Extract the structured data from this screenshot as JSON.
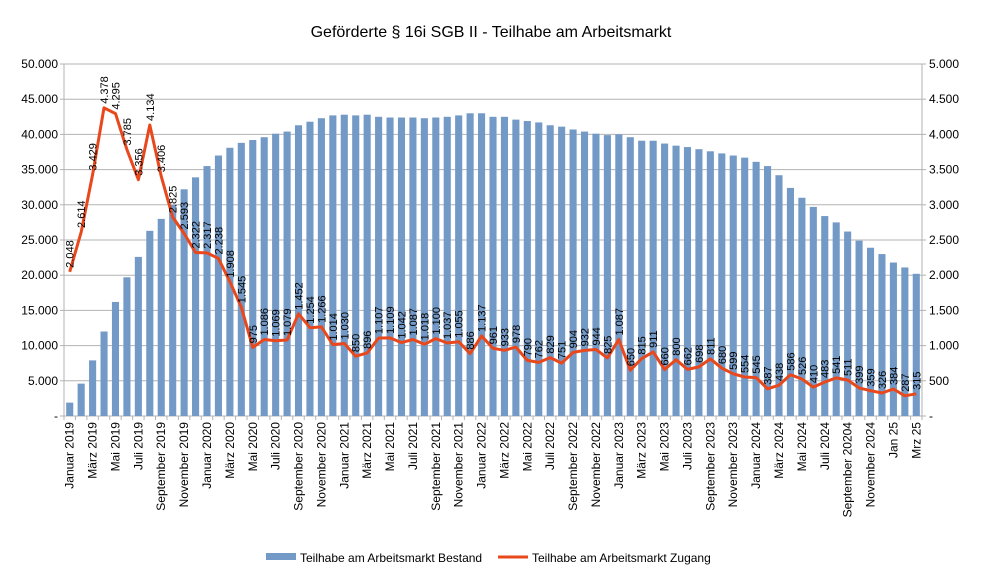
{
  "chart_data": {
    "type": "bar+line",
    "title": "Geförderte § 16i SGB II - Teilhabe am Arbeitsmarkt",
    "left_axis": {
      "ylim": [
        0,
        50000
      ],
      "ticks": [
        "-",
        "5.000",
        "10.000",
        "15.000",
        "20.000",
        "25.000",
        "30.000",
        "35.000",
        "40.000",
        "45.000",
        "50.000"
      ]
    },
    "right_axis": {
      "ylim": [
        0,
        5000
      ],
      "ticks": [
        "-",
        "500",
        "1.000",
        "1.500",
        "2.000",
        "2.500",
        "3.000",
        "3.500",
        "4.000",
        "4.500",
        "5.000"
      ]
    },
    "grid": true,
    "legend_position": "bottom",
    "x_tick_labels": [
      "Januar 2019",
      "März 2019",
      "Mai 2019",
      "Juli 2019",
      "September 2019",
      "November 2019",
      "Januar 2020",
      "März 2020",
      "Mai 2020",
      "Juli 2020",
      "September 2020",
      "November 2020",
      "Januar 2021",
      "März 2021",
      "Mai 2021",
      "Juli 2021",
      "September 2021",
      "November 2021",
      "Januar 2022",
      "März 2022",
      "Mai 2022",
      "Juli 2022",
      "September 2022",
      "November 2022",
      "Januar 2023",
      "März 2023",
      "Mai 2023",
      "Juli 2023",
      "September 2023",
      "November 2023",
      "Januar 2024",
      "März 2024",
      "Mai 2024",
      "Juli 2024",
      "September 20204",
      "November 2024",
      "Jan 25",
      "Mrz 25"
    ],
    "series": [
      {
        "name": "Teilhabe am Arbeitsmarkt Bestand",
        "type": "bar",
        "axis": "left",
        "color": "#7399c6",
        "values": [
          1900,
          4600,
          7900,
          12000,
          16200,
          19700,
          22600,
          26300,
          28000,
          30000,
          32200,
          33900,
          35500,
          37000,
          38100,
          38800,
          39200,
          39600,
          40100,
          40400,
          41300,
          41800,
          42300,
          42700,
          42800,
          42700,
          42800,
          42500,
          42400,
          42400,
          42400,
          42300,
          42400,
          42500,
          42700,
          43000,
          43000,
          42500,
          42500,
          42100,
          41900,
          41700,
          41300,
          41100,
          40700,
          40400,
          40100,
          39900,
          40000,
          39600,
          39100,
          39100,
          38700,
          38400,
          38200,
          37900,
          37600,
          37300,
          37000,
          36700,
          36100,
          35500,
          34200,
          32400,
          31000,
          29700,
          28400,
          27500,
          26200,
          24900,
          23900,
          23000,
          21800,
          21100,
          20200
        ]
      },
      {
        "name": "Teilhabe am Arbeitsmarkt Zugang",
        "type": "line",
        "axis": "right",
        "color": "#e8481c",
        "values": [
          2048,
          2614,
          3429,
          4378,
          4295,
          3785,
          3356,
          4134,
          3406,
          2825,
          2593,
          2322,
          2317,
          2238,
          1908,
          1545,
          975,
          1086,
          1069,
          1079,
          1452,
          1254,
          1266,
          1014,
          1030,
          850,
          896,
          1107,
          1109,
          1042,
          1087,
          1018,
          1100,
          1037,
          1055,
          886,
          1137,
          961,
          933,
          978,
          790,
          762,
          829,
          751,
          904,
          932,
          944,
          825,
          1087,
          650,
          815,
          911,
          660,
          800,
          662,
          698,
          811,
          680,
          599,
          554,
          545,
          387,
          438,
          586,
          526,
          410,
          483,
          541,
          511,
          399,
          359,
          326,
          384,
          287,
          315
        ],
        "labels": [
          "2.048",
          "2.614",
          "3.429",
          "4.378",
          "4.295",
          "3.785",
          "3.356",
          "4.134",
          "3.406",
          "2.825",
          "2.593",
          "2.322",
          "2.317",
          "2.238",
          "1.908",
          "1.545",
          "975",
          "1.086",
          "1.069",
          "1.079",
          "1.452",
          "1.254",
          "1.266",
          "1.014",
          "1.030",
          "850",
          "896",
          "1.107",
          "1.109",
          "1.042",
          "1.087",
          "1.018",
          "1.100",
          "1.037",
          "1.055",
          "886",
          "1.137",
          "961",
          "933",
          "978",
          "790",
          "762",
          "829",
          "751",
          "904",
          "932",
          "944",
          "825",
          "1.087",
          "650",
          "815",
          "911",
          "660",
          "800",
          "662",
          "698",
          "811",
          "680",
          "599",
          "554",
          "545",
          "387",
          "438",
          "586",
          "526",
          "410",
          "483",
          "541",
          "511",
          "399",
          "359",
          "326",
          "384",
          "287",
          "315"
        ]
      }
    ]
  }
}
